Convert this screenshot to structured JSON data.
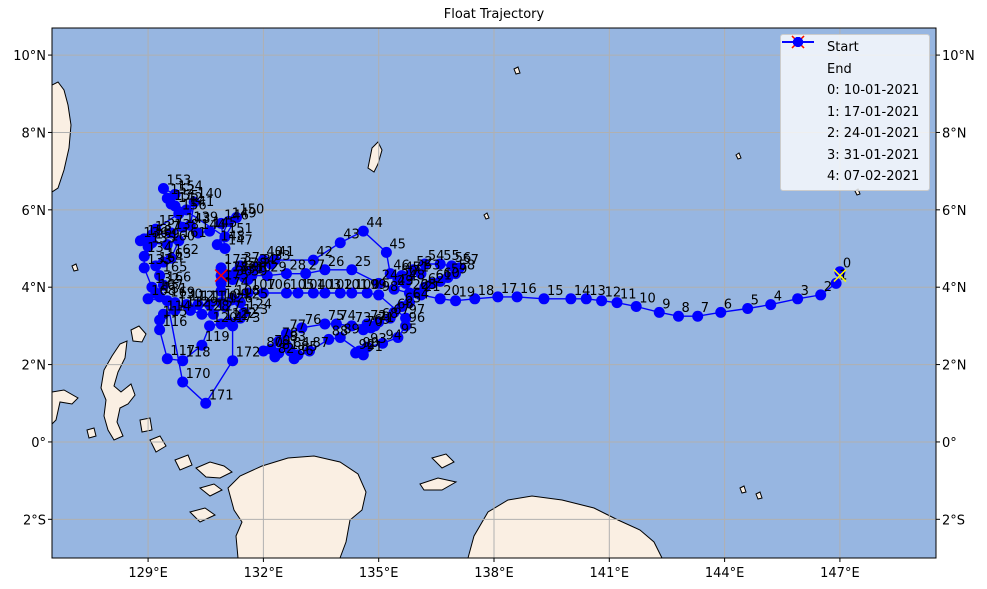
{
  "title": "Float Trajectory",
  "colors": {
    "ocean": "#97b6e1",
    "land": "#faefe3",
    "coast": "#000000",
    "track": "#0000ff",
    "start": "#ffff00",
    "end": "#ff0000",
    "grid": "#b0b0b0"
  },
  "map": {
    "lon_range": [
      126.5,
      149.5
    ],
    "lat_range": [
      -3.0,
      10.7
    ],
    "lon_ticks": [
      129,
      132,
      135,
      138,
      141,
      144,
      147
    ],
    "lat_ticks": [
      -2,
      0,
      2,
      4,
      6,
      8,
      10
    ],
    "lon_tick_labels": [
      "129°E",
      "132°E",
      "135°E",
      "138°E",
      "141°E",
      "144°E",
      "147°E"
    ],
    "lat_tick_labels": [
      "2°S",
      "0°",
      "2°N",
      "4°N",
      "6°N",
      "8°N",
      "10°N"
    ],
    "grid": true
  },
  "legend": {
    "position": "top-right",
    "entries": [
      {
        "label": "Start",
        "marker": "x",
        "color": "#ffff00"
      },
      {
        "label": "End",
        "marker": "x",
        "color": "#ff0000"
      },
      {
        "label": "0: 10-01-2021",
        "marker": "line-dot",
        "color": "#0000ff"
      },
      {
        "label": "1: 17-01-2021",
        "marker": "line-dot",
        "color": "#0000ff"
      },
      {
        "label": "2: 24-01-2021",
        "marker": "line-dot",
        "color": "#0000ff"
      },
      {
        "label": "3: 31-01-2021",
        "marker": "line-dot",
        "color": "#0000ff"
      },
      {
        "label": "4: 07-02-2021",
        "marker": "line-dot",
        "color": "#0000ff"
      }
    ]
  },
  "chart_data": {
    "type": "scatter",
    "start": {
      "lon": 147.0,
      "lat": 4.3
    },
    "end": {
      "lon": 130.9,
      "lat": 4.3
    },
    "track": [
      {
        "label": "0",
        "lon": 147.0,
        "lat": 4.4
      },
      {
        "label": "1",
        "lon": 146.9,
        "lat": 4.1
      },
      {
        "label": "2",
        "lon": 146.5,
        "lat": 3.8
      },
      {
        "label": "3",
        "lon": 145.9,
        "lat": 3.7
      },
      {
        "label": "4",
        "lon": 145.2,
        "lat": 3.55
      },
      {
        "label": "5",
        "lon": 144.6,
        "lat": 3.45
      },
      {
        "label": "6",
        "lon": 143.9,
        "lat": 3.35
      },
      {
        "label": "7",
        "lon": 143.3,
        "lat": 3.25
      },
      {
        "label": "8",
        "lon": 142.8,
        "lat": 3.25
      },
      {
        "label": "9",
        "lon": 142.3,
        "lat": 3.35
      },
      {
        "label": "10",
        "lon": 141.7,
        "lat": 3.5
      },
      {
        "label": "11",
        "lon": 141.2,
        "lat": 3.6
      },
      {
        "label": "12",
        "lon": 140.8,
        "lat": 3.65
      },
      {
        "label": "13",
        "lon": 140.4,
        "lat": 3.7
      },
      {
        "label": "14",
        "lon": 140.0,
        "lat": 3.7
      },
      {
        "label": "15",
        "lon": 139.3,
        "lat": 3.7
      },
      {
        "label": "16",
        "lon": 138.6,
        "lat": 3.75
      },
      {
        "label": "17",
        "lon": 138.1,
        "lat": 3.75
      },
      {
        "label": "18",
        "lon": 137.5,
        "lat": 3.7
      },
      {
        "label": "19",
        "lon": 137.0,
        "lat": 3.65
      },
      {
        "label": "20",
        "lon": 136.6,
        "lat": 3.7
      },
      {
        "label": "21",
        "lon": 136.1,
        "lat": 3.8
      },
      {
        "label": "22",
        "lon": 135.8,
        "lat": 3.85
      },
      {
        "label": "23",
        "lon": 135.4,
        "lat": 3.95
      },
      {
        "label": "24",
        "lon": 135.0,
        "lat": 4.1
      },
      {
        "label": "25",
        "lon": 134.3,
        "lat": 4.45
      },
      {
        "label": "26",
        "lon": 133.6,
        "lat": 4.45
      },
      {
        "label": "27",
        "lon": 133.1,
        "lat": 4.35
      },
      {
        "label": "28",
        "lon": 132.6,
        "lat": 4.35
      },
      {
        "label": "29",
        "lon": 132.1,
        "lat": 4.3
      },
      {
        "label": "30",
        "lon": 131.7,
        "lat": 4.3
      },
      {
        "label": "31",
        "lon": 131.5,
        "lat": 4.25
      },
      {
        "label": "32",
        "lon": 131.9,
        "lat": 4.5
      },
      {
        "label": "33",
        "lon": 132.2,
        "lat": 4.6
      },
      {
        "label": "34",
        "lon": 131.8,
        "lat": 4.5
      },
      {
        "label": "35",
        "lon": 131.3,
        "lat": 4.4
      },
      {
        "label": "36",
        "lon": 131.2,
        "lat": 4.2
      },
      {
        "label": "37",
        "lon": 131.4,
        "lat": 4.55
      },
      {
        "label": "38",
        "lon": 131.6,
        "lat": 4.4
      },
      {
        "label": "39",
        "lon": 131.6,
        "lat": 4.2
      },
      {
        "label": "40",
        "lon": 132.0,
        "lat": 4.7
      },
      {
        "label": "41",
        "lon": 132.3,
        "lat": 4.7
      },
      {
        "label": "42",
        "lon": 133.3,
        "lat": 4.7
      },
      {
        "label": "43",
        "lon": 134.0,
        "lat": 5.15
      },
      {
        "label": "44",
        "lon": 134.6,
        "lat": 5.45
      },
      {
        "label": "45",
        "lon": 135.2,
        "lat": 4.9
      },
      {
        "label": "46",
        "lon": 135.3,
        "lat": 4.35
      },
      {
        "label": "47",
        "lon": 135.6,
        "lat": 4.3
      },
      {
        "label": "48",
        "lon": 135.7,
        "lat": 4.1
      },
      {
        "label": "49",
        "lon": 135.4,
        "lat": 3.95
      },
      {
        "label": "50",
        "lon": 135.5,
        "lat": 4.2
      },
      {
        "label": "51",
        "lon": 135.8,
        "lat": 4.3
      },
      {
        "label": "52",
        "lon": 135.9,
        "lat": 4.45
      },
      {
        "label": "53",
        "lon": 136.1,
        "lat": 4.35
      },
      {
        "label": "54",
        "lon": 136.2,
        "lat": 4.6
      },
      {
        "label": "55",
        "lon": 136.6,
        "lat": 4.6
      },
      {
        "label": "56",
        "lon": 136.9,
        "lat": 4.55
      },
      {
        "label": "57",
        "lon": 137.1,
        "lat": 4.5
      },
      {
        "label": "58",
        "lon": 137.0,
        "lat": 4.35
      },
      {
        "label": "59",
        "lon": 136.8,
        "lat": 4.25
      },
      {
        "label": "60",
        "lon": 136.6,
        "lat": 4.15
      },
      {
        "label": "61",
        "lon": 136.4,
        "lat": 4.1
      },
      {
        "label": "62",
        "lon": 136.2,
        "lat": 4.0
      },
      {
        "label": "63",
        "lon": 136.0,
        "lat": 3.85
      },
      {
        "label": "64",
        "lon": 135.8,
        "lat": 3.6
      },
      {
        "label": "65",
        "lon": 135.6,
        "lat": 3.5
      },
      {
        "label": "66",
        "lon": 135.4,
        "lat": 3.35
      },
      {
        "label": "67",
        "lon": 135.3,
        "lat": 3.2
      },
      {
        "label": "68",
        "lon": 135.0,
        "lat": 3.1
      },
      {
        "label": "69",
        "lon": 134.8,
        "lat": 2.95
      },
      {
        "label": "70",
        "lon": 134.6,
        "lat": 2.9
      },
      {
        "label": "71",
        "lon": 134.9,
        "lat": 3.0
      },
      {
        "label": "72",
        "lon": 134.7,
        "lat": 3.05
      },
      {
        "label": "73",
        "lon": 134.3,
        "lat": 3.0
      },
      {
        "label": "74",
        "lon": 133.9,
        "lat": 3.05
      },
      {
        "label": "75",
        "lon": 133.6,
        "lat": 3.05
      },
      {
        "label": "76",
        "lon": 133.0,
        "lat": 2.95
      },
      {
        "label": "77",
        "lon": 132.6,
        "lat": 2.8
      },
      {
        "label": "78",
        "lon": 132.4,
        "lat": 2.6
      },
      {
        "label": "79",
        "lon": 132.2,
        "lat": 2.4
      },
      {
        "label": "80",
        "lon": 132.0,
        "lat": 2.35
      },
      {
        "label": "81",
        "lon": 132.4,
        "lat": 2.3
      },
      {
        "label": "82",
        "lon": 132.3,
        "lat": 2.2
      },
      {
        "label": "83",
        "lon": 132.6,
        "lat": 2.5
      },
      {
        "label": "84",
        "lon": 132.7,
        "lat": 2.35
      },
      {
        "label": "85",
        "lon": 132.9,
        "lat": 2.25
      },
      {
        "label": "86",
        "lon": 132.8,
        "lat": 2.15
      },
      {
        "label": "87",
        "lon": 133.2,
        "lat": 2.35
      },
      {
        "label": "88",
        "lon": 133.7,
        "lat": 2.65
      },
      {
        "label": "89",
        "lon": 134.0,
        "lat": 2.7
      },
      {
        "label": "90",
        "lon": 134.5,
        "lat": 2.35
      },
      {
        "label": "91",
        "lon": 134.6,
        "lat": 2.25
      },
      {
        "label": "92",
        "lon": 134.4,
        "lat": 2.3
      },
      {
        "label": "93",
        "lon": 134.7,
        "lat": 2.45
      },
      {
        "label": "94",
        "lon": 135.1,
        "lat": 2.55
      },
      {
        "label": "95",
        "lon": 135.5,
        "lat": 2.7
      },
      {
        "label": "96",
        "lon": 135.7,
        "lat": 3.0
      },
      {
        "label": "97",
        "lon": 135.7,
        "lat": 3.2
      },
      {
        "label": "98",
        "lon": 135.0,
        "lat": 3.8
      },
      {
        "label": "99",
        "lon": 134.7,
        "lat": 3.85
      },
      {
        "label": "100",
        "lon": 134.3,
        "lat": 3.85
      },
      {
        "label": "101",
        "lon": 134.0,
        "lat": 3.85
      },
      {
        "label": "102",
        "lon": 133.6,
        "lat": 3.85
      },
      {
        "label": "103",
        "lon": 133.3,
        "lat": 3.85
      },
      {
        "label": "104",
        "lon": 132.9,
        "lat": 3.85
      },
      {
        "label": "105",
        "lon": 132.6,
        "lat": 3.85
      },
      {
        "label": "106",
        "lon": 132.0,
        "lat": 3.85
      },
      {
        "label": "107",
        "lon": 131.6,
        "lat": 3.85
      },
      {
        "label": "108",
        "lon": 131.2,
        "lat": 3.7
      },
      {
        "label": "109",
        "lon": 130.9,
        "lat": 3.6
      },
      {
        "label": "110",
        "lon": 130.6,
        "lat": 3.55
      },
      {
        "label": "111",
        "lon": 130.3,
        "lat": 3.55
      },
      {
        "label": "112",
        "lon": 130.0,
        "lat": 3.55
      },
      {
        "label": "113",
        "lon": 129.7,
        "lat": 3.4
      },
      {
        "label": "114",
        "lon": 129.4,
        "lat": 3.3
      },
      {
        "label": "115",
        "lon": 129.3,
        "lat": 3.15
      },
      {
        "label": "116",
        "lon": 129.3,
        "lat": 2.9
      },
      {
        "label": "117",
        "lon": 129.5,
        "lat": 2.15
      },
      {
        "label": "118",
        "lon": 129.9,
        "lat": 2.1
      },
      {
        "label": "119",
        "lon": 130.4,
        "lat": 2.5
      },
      {
        "label": "120",
        "lon": 130.6,
        "lat": 3.0
      },
      {
        "label": "121",
        "lon": 130.9,
        "lat": 3.05
      },
      {
        "label": "122",
        "lon": 131.1,
        "lat": 3.1
      },
      {
        "label": "123",
        "lon": 131.4,
        "lat": 3.2
      },
      {
        "label": "124",
        "lon": 131.5,
        "lat": 3.35
      },
      {
        "label": "125",
        "lon": 131.4,
        "lat": 3.6
      },
      {
        "label": "126",
        "lon": 131.0,
        "lat": 3.5
      },
      {
        "label": "127",
        "lon": 130.7,
        "lat": 3.3
      },
      {
        "label": "128",
        "lon": 130.4,
        "lat": 3.3
      },
      {
        "label": "129",
        "lon": 130.1,
        "lat": 3.4
      },
      {
        "label": "130",
        "lon": 129.7,
        "lat": 3.6
      },
      {
        "label": "131",
        "lon": 129.3,
        "lat": 3.75
      },
      {
        "label": "132",
        "lon": 129.1,
        "lat": 4.0
      },
      {
        "label": "133",
        "lon": 128.9,
        "lat": 4.5
      },
      {
        "label": "134",
        "lon": 128.9,
        "lat": 4.8
      },
      {
        "label": "135",
        "lon": 129.0,
        "lat": 5.05
      },
      {
        "label": "136",
        "lon": 128.8,
        "lat": 5.2
      },
      {
        "label": "137",
        "lon": 129.1,
        "lat": 5.35
      },
      {
        "label": "138",
        "lon": 129.6,
        "lat": 5.4
      },
      {
        "label": "139",
        "lon": 130.1,
        "lat": 5.6
      },
      {
        "label": "140",
        "lon": 130.2,
        "lat": 6.2
      },
      {
        "label": "141",
        "lon": 130.0,
        "lat": 6.0
      },
      {
        "label": "142",
        "lon": 129.7,
        "lat": 6.1
      },
      {
        "label": "143",
        "lon": 129.9,
        "lat": 5.55
      },
      {
        "label": "144",
        "lon": 130.3,
        "lat": 5.4
      },
      {
        "label": "145",
        "lon": 130.6,
        "lat": 5.45
      },
      {
        "label": "146",
        "lon": 130.9,
        "lat": 5.65
      },
      {
        "label": "147",
        "lon": 131.0,
        "lat": 5.0
      },
      {
        "label": "148",
        "lon": 130.8,
        "lat": 5.1
      },
      {
        "label": "149",
        "lon": 131.1,
        "lat": 5.7
      },
      {
        "label": "150",
        "lon": 131.3,
        "lat": 5.8
      },
      {
        "label": "151",
        "lon": 131.0,
        "lat": 5.3
      },
      {
        "label": "152",
        "lon": 129.5,
        "lat": 6.3
      },
      {
        "label": "153",
        "lon": 129.4,
        "lat": 6.55
      },
      {
        "label": "154",
        "lon": 129.7,
        "lat": 6.4
      },
      {
        "label": "155",
        "lon": 129.6,
        "lat": 6.15
      },
      {
        "label": "156",
        "lon": 129.8,
        "lat": 5.9
      },
      {
        "label": "157",
        "lon": 129.2,
        "lat": 5.5
      },
      {
        "label": "158",
        "lon": 128.9,
        "lat": 5.25
      },
      {
        "label": "159",
        "lon": 129.1,
        "lat": 5.15
      },
      {
        "label": "160",
        "lon": 129.5,
        "lat": 5.1
      },
      {
        "label": "161",
        "lon": 129.8,
        "lat": 5.2
      },
      {
        "label": "162",
        "lon": 129.6,
        "lat": 4.75
      },
      {
        "label": "163",
        "lon": 129.4,
        "lat": 4.65
      },
      {
        "label": "164",
        "lon": 129.2,
        "lat": 4.55
      },
      {
        "label": "165",
        "lon": 129.3,
        "lat": 4.3
      },
      {
        "label": "166",
        "lon": 129.4,
        "lat": 4.05
      },
      {
        "label": "167",
        "lon": 129.2,
        "lat": 3.85
      },
      {
        "label": "168",
        "lon": 129.0,
        "lat": 3.7
      },
      {
        "label": "169",
        "lon": 129.5,
        "lat": 3.65
      },
      {
        "label": "170",
        "lon": 129.9,
        "lat": 1.55
      },
      {
        "label": "171",
        "lon": 130.5,
        "lat": 1.0
      },
      {
        "label": "172",
        "lon": 131.2,
        "lat": 2.1
      },
      {
        "label": "173",
        "lon": 131.2,
        "lat": 3.0
      },
      {
        "label": "174",
        "lon": 130.9,
        "lat": 3.9
      },
      {
        "label": "175",
        "lon": 130.9,
        "lat": 4.1
      },
      {
        "label": "176",
        "lon": 131.1,
        "lat": 4.3
      },
      {
        "label": "177",
        "lon": 130.9,
        "lat": 4.5
      },
      {
        "label": "178",
        "lon": 130.9,
        "lat": 4.3
      }
    ]
  }
}
